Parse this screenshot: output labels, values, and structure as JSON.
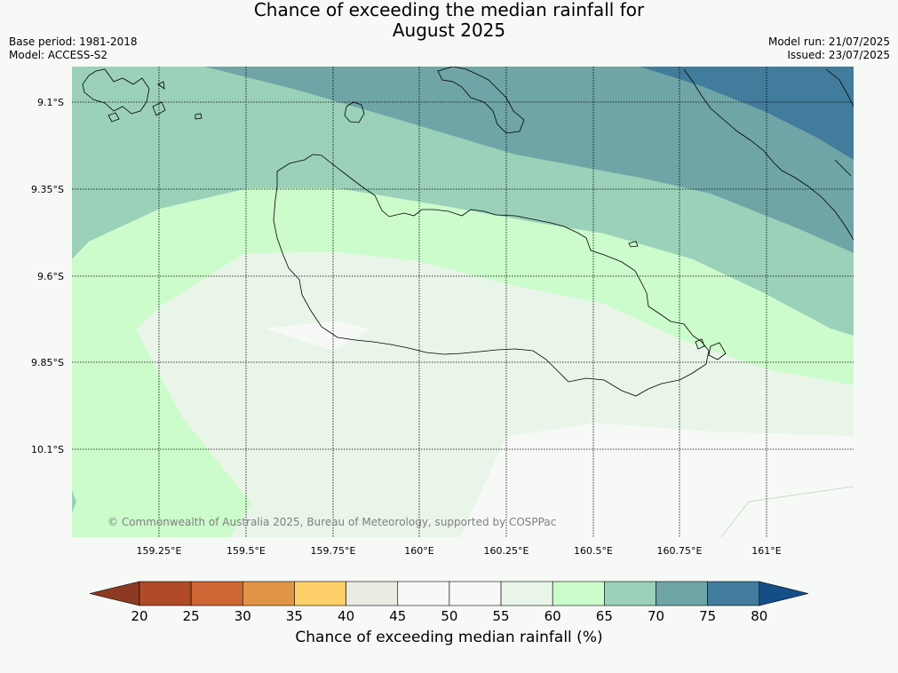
{
  "title_line1": "Chance of exceeding the median rainfall for",
  "title_line2": "August 2025",
  "base_period": "Base period: 1981-2018",
  "model": "Model: ACCESS-S2",
  "model_run": "Model run: 21/07/2025",
  "issued": "Issued: 23/07/2025",
  "copyright": "© Commonwealth of Australia 2025, Bureau of Meteorology, supported by COSPPac",
  "lat_labels": [
    "9.1°S",
    "9.35°S",
    "9.6°S",
    "9.85°S",
    "10.1°S"
  ],
  "lon_labels": [
    "159.25°E",
    "159.5°E",
    "159.75°E",
    "160°E",
    "160.25°E",
    "160.5°E",
    "160.75°E",
    "161°E"
  ],
  "colorbar": {
    "label": "Chance of exceeding median rainfall (%)",
    "ticks": [
      "20",
      "25",
      "30",
      "35",
      "40",
      "45",
      "50",
      "55",
      "60",
      "65",
      "70",
      "75",
      "80"
    ],
    "low_color": "#8e3a22",
    "high_color": "#134e86",
    "colors": [
      "#b04a28",
      "#cd6534",
      "#e29447",
      "#fdcf68",
      "#ebebe4",
      "#f6f9f6",
      "#f6f9f6",
      "#e9f5e9",
      "#ccfccc",
      "#9bd1b9",
      "#6fa5a6",
      "#417c9c"
    ]
  },
  "zone_colors": {
    "z75": "#417c9c",
    "z70": "#6fa5a6",
    "z65": "#9bd1b9",
    "z60": "#ccfccc",
    "z55": "#e9f5e9",
    "z50": "#f6f9f6",
    "z45": "#ebebe4"
  }
}
